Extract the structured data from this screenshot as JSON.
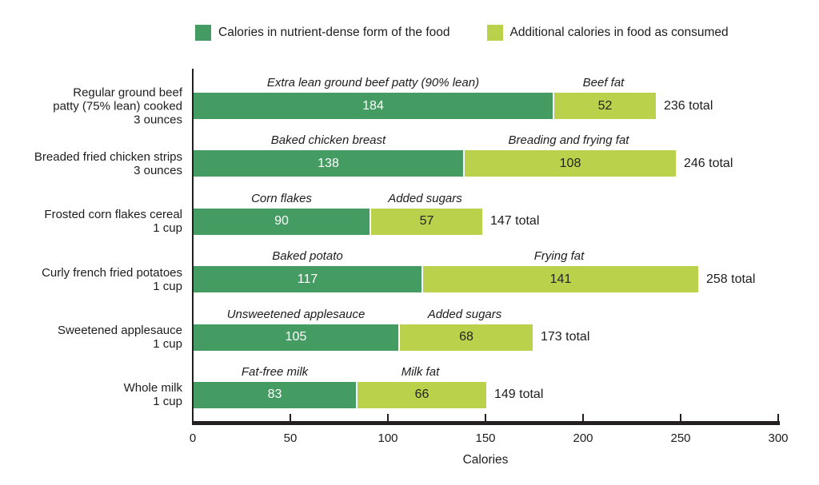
{
  "legend": [
    {
      "label": "Calories in nutrient-dense form of the food",
      "color": "#459c63"
    },
    {
      "label": "Additional calories in food as consumed",
      "color": "#bad24b"
    }
  ],
  "colors": {
    "nutrient_dense": "#459c63",
    "additional": "#bad24b",
    "axis": "#231f20"
  },
  "chart_data": {
    "type": "bar",
    "orientation": "horizontal",
    "stacked": true,
    "title": "",
    "xlabel": "Calories",
    "ylabel": "",
    "xlim": [
      0,
      300
    ],
    "xticks": [
      0,
      50,
      100,
      150,
      200,
      250,
      300
    ],
    "series_names": [
      "Calories in nutrient-dense form of the food",
      "Additional calories in food as consumed"
    ],
    "rows": [
      {
        "category": "Regular ground beef\npatty (75% lean) cooked\n3 ounces",
        "segments": [
          {
            "label": "Extra lean ground beef patty (90% lean)",
            "value": 184
          },
          {
            "label": "Beef fat",
            "value": 52
          }
        ],
        "total": 236,
        "total_label": "236 total"
      },
      {
        "category": "Breaded fried chicken strips\n3 ounces",
        "segments": [
          {
            "label": "Baked chicken breast",
            "value": 138
          },
          {
            "label": "Breading and frying fat",
            "value": 108
          }
        ],
        "total": 246,
        "total_label": "246 total"
      },
      {
        "category": "Frosted corn flakes cereal\n1 cup",
        "segments": [
          {
            "label": "Corn flakes",
            "value": 90
          },
          {
            "label": "Added sugars",
            "value": 57
          }
        ],
        "total": 147,
        "total_label": "147 total"
      },
      {
        "category": "Curly french fried potatoes\n1 cup",
        "segments": [
          {
            "label": "Baked potato",
            "value": 117
          },
          {
            "label": "Frying fat",
            "value": 141
          }
        ],
        "total": 258,
        "total_label": "258 total"
      },
      {
        "category": "Sweetened applesauce\n1 cup",
        "segments": [
          {
            "label": "Unsweetened applesauce",
            "value": 105
          },
          {
            "label": "Added sugars",
            "value": 68
          }
        ],
        "total": 173,
        "total_label": "173 total"
      },
      {
        "category": "Whole milk\n1 cup",
        "segments": [
          {
            "label": "Fat-free milk",
            "value": 83
          },
          {
            "label": "Milk fat",
            "value": 66
          }
        ],
        "total": 149,
        "total_label": "149 total"
      }
    ]
  }
}
